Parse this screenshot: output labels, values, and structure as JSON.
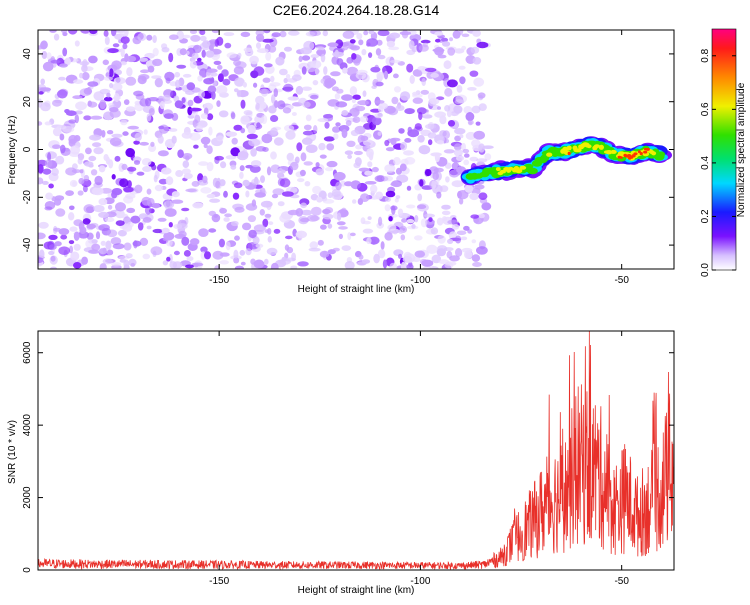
{
  "title": "C2E6.2024.264.18.28.G14",
  "chart_data": [
    {
      "type": "heatmap",
      "xlabel": "Height of straight line (km)",
      "ylabel": "Frequency (Hz)",
      "xlim": [
        -195,
        -37
      ],
      "ylim": [
        -50,
        50
      ],
      "xticks": [
        -150,
        -100,
        -50
      ],
      "yticks": [
        -40,
        -20,
        0,
        20,
        40
      ],
      "colorbar": {
        "label": "Normalized spectral amplitude",
        "range": [
          0,
          0.9
        ],
        "ticks": [
          0.0,
          0.2,
          0.4,
          0.6,
          0.8
        ]
      },
      "signal_track": [
        {
          "x": -88,
          "y": -12,
          "amp": 0.35
        },
        {
          "x": -84,
          "y": -10,
          "amp": 0.45
        },
        {
          "x": -80,
          "y": -9,
          "amp": 0.55
        },
        {
          "x": -76,
          "y": -8,
          "amp": 0.55
        },
        {
          "x": -72,
          "y": -8,
          "amp": 0.4
        },
        {
          "x": -68,
          "y": -1,
          "amp": 0.5
        },
        {
          "x": -64,
          "y": -1,
          "amp": 0.55
        },
        {
          "x": -60,
          "y": 1,
          "amp": 0.6
        },
        {
          "x": -56,
          "y": 2,
          "amp": 0.55
        },
        {
          "x": -52,
          "y": -2,
          "amp": 0.5
        },
        {
          "x": -48,
          "y": -3,
          "amp": 0.75
        },
        {
          "x": -44,
          "y": -1,
          "amp": 0.65
        },
        {
          "x": -40,
          "y": -2,
          "amp": 0.45
        }
      ]
    },
    {
      "type": "line",
      "xlabel": "Height of straight line (km)",
      "ylabel": "SNR (10 * v/v)",
      "xlim": [
        -195,
        -37
      ],
      "ylim": [
        0,
        6600
      ],
      "xticks": [
        -150,
        -100,
        -50
      ],
      "yticks": [
        0,
        2000,
        4000,
        6000
      ],
      "series": [
        {
          "color": "#e8302a",
          "envelope": [
            {
              "x": -195,
              "y": 250
            },
            {
              "x": -180,
              "y": 230
            },
            {
              "x": -160,
              "y": 220
            },
            {
              "x": -140,
              "y": 200
            },
            {
              "x": -120,
              "y": 190
            },
            {
              "x": -100,
              "y": 180
            },
            {
              "x": -90,
              "y": 170
            },
            {
              "x": -84,
              "y": 220
            },
            {
              "x": -80,
              "y": 500
            },
            {
              "x": -76,
              "y": 1300
            },
            {
              "x": -72,
              "y": 1900
            },
            {
              "x": -68,
              "y": 2700
            },
            {
              "x": -64,
              "y": 3000
            },
            {
              "x": -61,
              "y": 4100
            },
            {
              "x": -58,
              "y": 4200
            },
            {
              "x": -55,
              "y": 3600
            },
            {
              "x": -52,
              "y": 2400
            },
            {
              "x": -49,
              "y": 2900
            },
            {
              "x": -46,
              "y": 2100
            },
            {
              "x": -43,
              "y": 2600
            },
            {
              "x": -40,
              "y": 3200
            },
            {
              "x": -37,
              "y": 4300
            }
          ],
          "peak_max": 6600
        }
      ]
    }
  ]
}
